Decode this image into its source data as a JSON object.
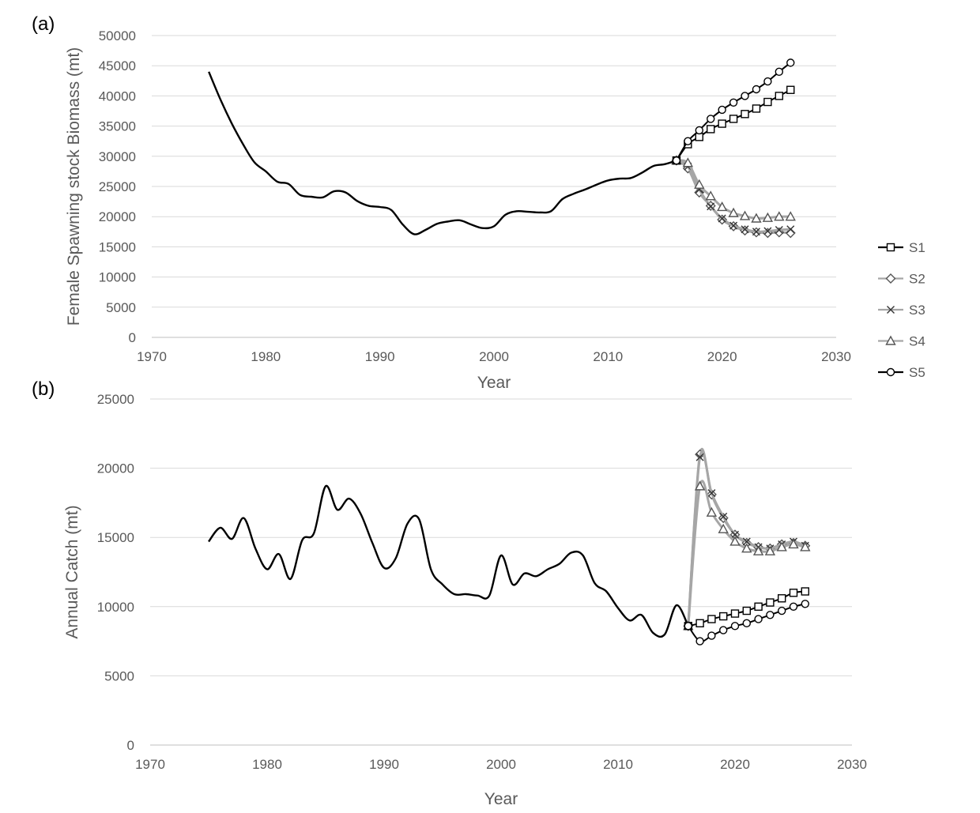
{
  "legend": [
    {
      "name": "S1",
      "marker": "square",
      "color": "#595959"
    },
    {
      "name": "S2",
      "marker": "diamond",
      "color": "#a6a6a6"
    },
    {
      "name": "S3",
      "marker": "x",
      "color": "#808080"
    },
    {
      "name": "S4",
      "marker": "triangle",
      "color": "#a6a6a6"
    },
    {
      "name": "S5",
      "marker": "circle",
      "color": "#000000"
    }
  ],
  "chart_data": [
    {
      "panel": "(a)",
      "type": "line",
      "title": "",
      "xlabel": "Year",
      "ylabel": "Female Spawning stock Biomass (mt)",
      "xlim": [
        1970,
        2030
      ],
      "ylim": [
        0,
        50000
      ],
      "xticks": [
        1970,
        1980,
        1990,
        2000,
        2010,
        2020,
        2030
      ],
      "yticks": [
        0,
        5000,
        10000,
        15000,
        20000,
        25000,
        30000,
        35000,
        40000,
        45000,
        50000
      ],
      "grid": "horizontal",
      "legend_position": "right",
      "historical": {
        "x": [
          1975,
          1976,
          1977,
          1978,
          1979,
          1980,
          1981,
          1982,
          1983,
          1984,
          1985,
          1986,
          1987,
          1988,
          1989,
          1990,
          1991,
          1992,
          1993,
          1994,
          1995,
          1996,
          1997,
          1998,
          1999,
          2000,
          2001,
          2002,
          2003,
          2004,
          2005,
          2006,
          2007,
          2008,
          2009,
          2010,
          2011,
          2012,
          2013,
          2014,
          2015,
          2016
        ],
        "y": [
          44000,
          39500,
          35500,
          32000,
          29000,
          27500,
          25800,
          25400,
          23600,
          23300,
          23200,
          24200,
          24000,
          22600,
          21800,
          21600,
          21100,
          18700,
          17100,
          17800,
          18800,
          19200,
          19400,
          18700,
          18100,
          18400,
          20300,
          20900,
          20800,
          20700,
          20900,
          22900,
          23800,
          24500,
          25300,
          26000,
          26300,
          26400,
          27300,
          28400,
          28700,
          29300
        ]
      },
      "series": [
        {
          "name": "S1",
          "x": [
            2016,
            2017,
            2018,
            2019,
            2020,
            2021,
            2022,
            2023,
            2024,
            2025,
            2026
          ],
          "values": [
            29300,
            32000,
            33200,
            34500,
            35400,
            36200,
            37000,
            37900,
            39000,
            40000,
            41000
          ]
        },
        {
          "name": "S2",
          "x": [
            2016,
            2017,
            2018,
            2019,
            2020,
            2021,
            2022,
            2023,
            2024,
            2025,
            2026
          ],
          "values": [
            29300,
            28000,
            24000,
            21800,
            19500,
            18400,
            17700,
            17400,
            17300,
            17400,
            17300
          ]
        },
        {
          "name": "S3",
          "x": [
            2016,
            2017,
            2018,
            2019,
            2020,
            2021,
            2022,
            2023,
            2024,
            2025,
            2026
          ],
          "values": [
            29300,
            28300,
            24500,
            21700,
            19700,
            18500,
            17900,
            17500,
            17600,
            17800,
            17900
          ]
        },
        {
          "name": "S4",
          "x": [
            2016,
            2017,
            2018,
            2019,
            2020,
            2021,
            2022,
            2023,
            2024,
            2025,
            2026
          ],
          "values": [
            29300,
            28900,
            25300,
            23400,
            21600,
            20600,
            20100,
            19700,
            19800,
            20000,
            20000
          ]
        },
        {
          "name": "S5",
          "x": [
            2016,
            2017,
            2018,
            2019,
            2020,
            2021,
            2022,
            2023,
            2024,
            2025,
            2026
          ],
          "values": [
            29300,
            32500,
            34300,
            36200,
            37700,
            38900,
            40000,
            41100,
            42400,
            44000,
            45500
          ]
        }
      ]
    },
    {
      "panel": "(b)",
      "type": "line",
      "title": "",
      "xlabel": "Year",
      "ylabel": "Annual Catch (mt)",
      "xlim": [
        1970,
        2030
      ],
      "ylim": [
        0,
        25000
      ],
      "xticks": [
        1970,
        1980,
        1990,
        2000,
        2010,
        2020,
        2030
      ],
      "yticks": [
        0,
        5000,
        10000,
        15000,
        20000,
        25000
      ],
      "grid": "horizontal",
      "historical": {
        "x": [
          1975,
          1976,
          1977,
          1978,
          1979,
          1980,
          1981,
          1982,
          1983,
          1984,
          1985,
          1986,
          1987,
          1988,
          1989,
          1990,
          1991,
          1992,
          1993,
          1994,
          1995,
          1996,
          1997,
          1998,
          1999,
          2000,
          2001,
          2002,
          2003,
          2004,
          2005,
          2006,
          2007,
          2008,
          2009,
          2010,
          2011,
          2012,
          2013,
          2014,
          2015,
          2016
        ],
        "y": [
          14700,
          15700,
          14900,
          16400,
          14200,
          12700,
          13800,
          12000,
          14800,
          15300,
          18700,
          17000,
          17800,
          16700,
          14600,
          12800,
          13500,
          16000,
          16300,
          12700,
          11600,
          10900,
          10900,
          10800,
          10800,
          13700,
          11600,
          12400,
          12200,
          12700,
          13100,
          13900,
          13700,
          11700,
          11100,
          9900,
          9000,
          9400,
          8100,
          8000,
          10100,
          8600
        ]
      },
      "series": [
        {
          "name": "S1",
          "x": [
            2016,
            2017,
            2018,
            2019,
            2020,
            2021,
            2022,
            2023,
            2024,
            2025,
            2026
          ],
          "values": [
            8600,
            8800,
            9100,
            9300,
            9500,
            9700,
            10000,
            10300,
            10600,
            11000,
            11100
          ]
        },
        {
          "name": "S2",
          "x": [
            2016,
            2017,
            2018,
            2019,
            2020,
            2021,
            2022,
            2023,
            2024,
            2025,
            2026
          ],
          "values": [
            8600,
            21000,
            18100,
            16400,
            15200,
            14600,
            14300,
            14200,
            14500,
            14600,
            14400
          ]
        },
        {
          "name": "S3",
          "x": [
            2016,
            2017,
            2018,
            2019,
            2020,
            2021,
            2022,
            2023,
            2024,
            2025,
            2026
          ],
          "values": [
            8600,
            20800,
            18200,
            16500,
            15200,
            14700,
            14300,
            14200,
            14500,
            14700,
            14400
          ]
        },
        {
          "name": "S4",
          "x": [
            2016,
            2017,
            2018,
            2019,
            2020,
            2021,
            2022,
            2023,
            2024,
            2025,
            2026
          ],
          "values": [
            8600,
            18700,
            16800,
            15600,
            14700,
            14200,
            14000,
            14000,
            14300,
            14500,
            14300
          ]
        },
        {
          "name": "S5",
          "x": [
            2016,
            2017,
            2018,
            2019,
            2020,
            2021,
            2022,
            2023,
            2024,
            2025,
            2026
          ],
          "values": [
            8600,
            7500,
            7900,
            8300,
            8600,
            8800,
            9100,
            9400,
            9700,
            10000,
            10200
          ]
        }
      ]
    }
  ]
}
